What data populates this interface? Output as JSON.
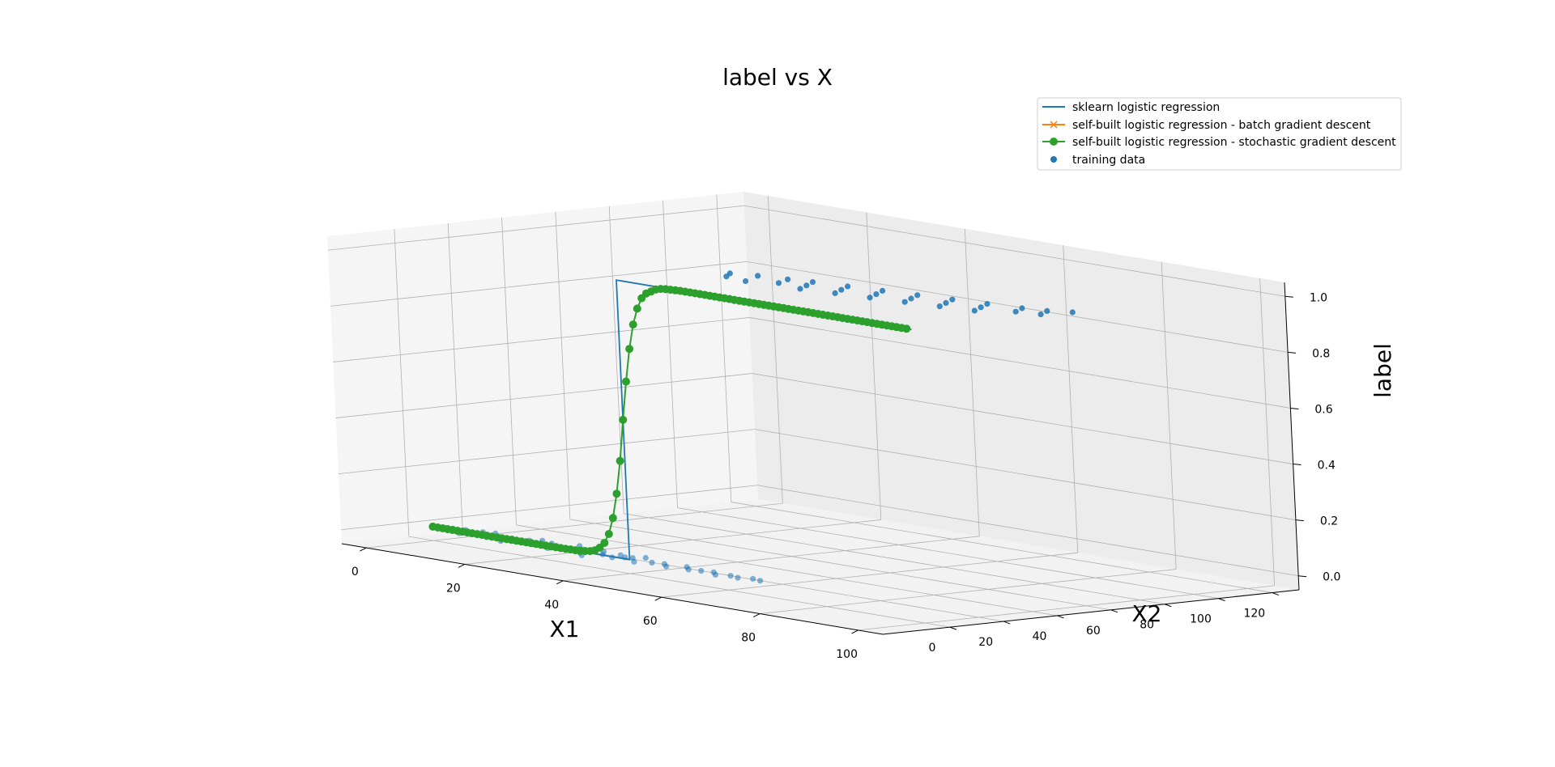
{
  "chart_data": {
    "type": "line3d",
    "title": "label vs X",
    "xlabel": "X1",
    "ylabel": "X2",
    "zlabel": "label",
    "xlim": [
      -5,
      105
    ],
    "ylim": [
      -25,
      130
    ],
    "zlim": [
      -0.05,
      1.05
    ],
    "xticks": [
      "0",
      "20",
      "40",
      "60",
      "80",
      "100"
    ],
    "yticks": [
      "0",
      "20",
      "40",
      "60",
      "80",
      "100",
      "120"
    ],
    "zticks": [
      "0.0",
      "0.2",
      "0.4",
      "0.6",
      "0.8",
      "1.0"
    ],
    "xtick_values": [
      0,
      20,
      40,
      60,
      80,
      100
    ],
    "ytick_values": [
      0,
      20,
      40,
      60,
      80,
      100,
      120
    ],
    "ztick_values": [
      0,
      0.2,
      0.4,
      0.6,
      0.8,
      1.0
    ],
    "grid": true,
    "legend_position": "top-right",
    "colors": {
      "sklearn": "#1f77b4",
      "batch": "#ff7f0e",
      "sgd": "#2ca02c",
      "training": "#1f77b4"
    },
    "series": [
      {
        "name": "sklearn logistic regression",
        "type": "line",
        "points": [
          [
            0,
            0,
            0
          ],
          [
            39,
            0,
            0
          ],
          [
            40,
            0,
            0
          ],
          [
            40,
            0,
            1
          ],
          [
            41,
            0,
            1
          ],
          [
            100,
            0,
            1
          ]
        ]
      },
      {
        "name": "self-built logistic regression - batch gradient descent",
        "type": "line-marker-x",
        "points": []
      },
      {
        "name": "self-built logistic regression - stochastic gradient descent",
        "type": "line-marker-o",
        "x": [
          0,
          1,
          2,
          3,
          4,
          5,
          6,
          7,
          8,
          9,
          10,
          11,
          12,
          13,
          14,
          15,
          16,
          17,
          18,
          19,
          20,
          21,
          22,
          23,
          24,
          25,
          26,
          27,
          28,
          29,
          30,
          31,
          32,
          33,
          34,
          35,
          36,
          37,
          38,
          39,
          40,
          41,
          42,
          43,
          44,
          45,
          46,
          47,
          48,
          49,
          50,
          51,
          52,
          53,
          54,
          55,
          56,
          57,
          58,
          59,
          60,
          61,
          62,
          63,
          64,
          65,
          66,
          67,
          68,
          69,
          70,
          71,
          72,
          73,
          74,
          75,
          76,
          77,
          78,
          79,
          80,
          81,
          82,
          83,
          84,
          85,
          86,
          87,
          88,
          89,
          90,
          91,
          92,
          93,
          94,
          95,
          96,
          97,
          98,
          99
        ],
        "z": [
          0,
          0,
          0,
          0,
          0,
          0,
          0,
          0,
          0,
          0,
          0,
          0,
          0,
          0,
          0,
          0,
          0,
          0,
          0,
          0,
          0,
          0,
          0,
          0,
          0,
          0,
          0,
          0,
          0.001,
          0.001,
          0.002,
          0.004,
          0.007,
          0.013,
          0.025,
          0.045,
          0.08,
          0.14,
          0.23,
          0.35,
          0.5,
          0.64,
          0.76,
          0.85,
          0.91,
          0.95,
          0.97,
          0.98,
          0.99,
          0.995,
          0.997,
          0.998,
          0.999,
          1,
          1,
          1,
          1,
          1,
          1,
          1,
          1,
          1,
          1,
          1,
          1,
          1,
          1,
          1,
          1,
          1,
          1,
          1,
          1,
          1,
          1,
          1,
          1,
          1,
          1,
          1,
          1,
          1,
          1,
          1,
          1,
          1,
          1,
          1,
          1,
          1,
          1,
          1,
          1,
          1,
          1,
          1,
          1,
          1,
          1,
          1
        ]
      },
      {
        "name": "training data",
        "type": "scatter",
        "points": [
          [
            2,
            1,
            0
          ],
          [
            3,
            2,
            0
          ],
          [
            5,
            3,
            0
          ],
          [
            7,
            -3,
            0
          ],
          [
            8,
            4,
            0
          ],
          [
            10,
            5,
            0
          ],
          [
            12,
            -2,
            0
          ],
          [
            13,
            1,
            0
          ],
          [
            15,
            2,
            0
          ],
          [
            16,
            -4,
            0
          ],
          [
            18,
            3,
            0
          ],
          [
            19,
            6,
            0
          ],
          [
            21,
            -1,
            0
          ],
          [
            22,
            4,
            0
          ],
          [
            24,
            2,
            0
          ],
          [
            25,
            -3,
            0
          ],
          [
            26,
            7,
            0
          ],
          [
            28,
            0,
            0
          ],
          [
            29,
            3,
            0
          ],
          [
            31,
            -2,
            0
          ],
          [
            32,
            5,
            0
          ],
          [
            33,
            -5,
            0
          ],
          [
            34,
            1,
            0
          ],
          [
            36,
            4,
            0
          ],
          [
            37,
            -1,
            0
          ],
          [
            38,
            2,
            0
          ],
          [
            39,
            3,
            0
          ],
          [
            40,
            6,
            0
          ],
          [
            42,
            -2,
            0
          ],
          [
            44,
            1,
            0
          ],
          [
            46,
            2,
            0
          ],
          [
            48,
            -1,
            0
          ],
          [
            50,
            3,
            0
          ],
          [
            52,
            0,
            0
          ],
          [
            54,
            1,
            0
          ],
          [
            56,
            2,
            0
          ],
          [
            58,
            -1,
            0
          ],
          [
            60,
            1,
            0
          ],
          [
            62,
            0,
            0
          ],
          [
            64,
            2,
            0
          ],
          [
            66,
            1,
            0
          ],
          [
            44,
            35,
            1
          ],
          [
            46,
            30,
            1
          ],
          [
            48,
            38,
            1
          ],
          [
            51,
            28,
            1
          ],
          [
            53,
            40,
            1
          ],
          [
            55,
            33,
            1
          ],
          [
            57,
            42,
            1
          ],
          [
            59,
            36,
            1
          ],
          [
            61,
            30,
            1
          ],
          [
            63,
            44,
            1
          ],
          [
            65,
            38,
            1
          ],
          [
            67,
            32,
            1
          ],
          [
            69,
            46,
            1
          ],
          [
            71,
            40,
            1
          ],
          [
            73,
            34,
            1
          ],
          [
            75,
            48,
            1
          ],
          [
            77,
            42,
            1
          ],
          [
            79,
            36,
            1
          ],
          [
            81,
            50,
            1
          ],
          [
            83,
            44,
            1
          ],
          [
            85,
            38,
            1
          ],
          [
            87,
            52,
            1
          ],
          [
            89,
            46,
            1
          ],
          [
            91,
            40,
            1
          ],
          [
            93,
            54,
            1
          ],
          [
            95,
            48,
            1
          ],
          [
            97,
            56,
            1
          ],
          [
            99,
            50,
            1
          ],
          [
            100,
            60,
            1
          ]
        ]
      }
    ]
  }
}
